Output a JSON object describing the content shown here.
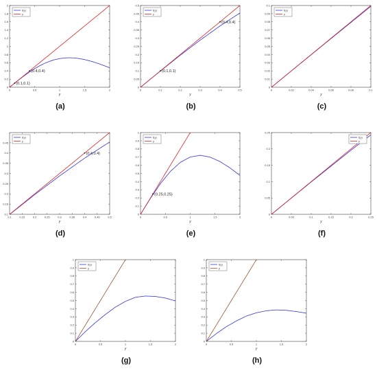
{
  "colors": {
    "f_curve": "#3333dd",
    "y_line": "#dd2222",
    "g_line": "#a0522d",
    "axes": "#444444"
  },
  "chart_data": [
    {
      "panel": "(a)",
      "type": "line",
      "xlabel": "y",
      "ylabel": "",
      "xlim": [
        0,
        2
      ],
      "ylim": [
        0,
        2
      ],
      "xticks": [
        "0",
        "0.5",
        "1",
        "1.5",
        "2"
      ],
      "yticks": [
        "0",
        "0.2",
        "0.4",
        "0.6",
        "0.8",
        "1",
        "1.2",
        "1.4",
        "1.6",
        "1.8",
        "2"
      ],
      "legend": {
        "position": "top-left",
        "entries": [
          "f(y)",
          "y"
        ]
      },
      "series": [
        {
          "name": "f(y)",
          "color": "f_curve",
          "fn": "f1",
          "x": [
            0,
            0.1,
            0.2,
            0.3,
            0.4,
            0.5,
            0.6,
            0.7,
            0.8,
            0.9,
            1.0,
            1.1,
            1.2,
            1.3,
            1.4,
            1.5,
            1.6,
            1.7,
            1.8,
            1.9,
            2.0
          ],
          "values": [
            0,
            0.099,
            0.196,
            0.288,
            0.375,
            0.454,
            0.524,
            0.585,
            0.635,
            0.674,
            0.701,
            0.717,
            0.722,
            0.716,
            0.7,
            0.676,
            0.645,
            0.609,
            0.568,
            0.523,
            0.476
          ]
        },
        {
          "name": "y",
          "color": "y_line",
          "fn": "identity",
          "x": [
            0,
            2
          ],
          "values": [
            0,
            2
          ]
        }
      ],
      "annotations": [
        {
          "text": "(0.1,0.1)",
          "x": 0.1,
          "y": 0.1
        },
        {
          "text": "(0.4,0.4)",
          "x": 0.4,
          "y": 0.4
        }
      ]
    },
    {
      "panel": "(b)",
      "type": "line",
      "xlabel": "y",
      "ylabel": "",
      "xlim": [
        0,
        0.5
      ],
      "ylim": [
        0,
        0.5
      ],
      "xticks": [
        "0",
        "0.1",
        "0.2",
        "0.3",
        "0.4",
        "0.5"
      ],
      "yticks": [
        "0",
        "0.05",
        "0.1",
        "0.15",
        "0.2",
        "0.25",
        "0.3",
        "0.35",
        "0.4",
        "0.45",
        "0.5"
      ],
      "legend": {
        "position": "top-left",
        "entries": [
          "f(y)",
          "y"
        ]
      },
      "series": [
        {
          "name": "f(y)",
          "color": "f_curve",
          "fn": "f1",
          "x": [
            0,
            0.1,
            0.2,
            0.3,
            0.4,
            0.5
          ],
          "values": [
            0,
            0.099,
            0.196,
            0.288,
            0.375,
            0.454
          ]
        },
        {
          "name": "y",
          "color": "y_line",
          "fn": "identity",
          "x": [
            0,
            0.5
          ],
          "values": [
            0,
            0.5
          ]
        }
      ],
      "annotations": [
        {
          "text": "(0.1,0.1)",
          "x": 0.1,
          "y": 0.1
        },
        {
          "text": "(0.4,0.4)",
          "x": 0.4,
          "y": 0.4
        }
      ]
    },
    {
      "panel": "(c)",
      "type": "line",
      "xlabel": "y",
      "ylabel": "",
      "xlim": [
        0,
        0.1
      ],
      "ylim": [
        0,
        0.1
      ],
      "xticks": [
        "0",
        "0.02",
        "0.04",
        "0.06",
        "0.08",
        "0.1"
      ],
      "yticks": [
        "0",
        "0.01",
        "0.02",
        "0.03",
        "0.04",
        "0.05",
        "0.06",
        "0.07",
        "0.08",
        "0.09",
        "0.1"
      ],
      "legend": {
        "position": "top-left",
        "entries": [
          "f(y)",
          "y"
        ]
      },
      "series": [
        {
          "name": "f(y)",
          "color": "f_curve",
          "fn": "f1",
          "x": [
            0,
            0.05,
            0.1
          ],
          "values": [
            0,
            0.0497,
            0.099
          ]
        },
        {
          "name": "y",
          "color": "y_line",
          "fn": "identity",
          "x": [
            0,
            0.1
          ],
          "values": [
            0,
            0.1
          ]
        }
      ],
      "annotations": []
    },
    {
      "panel": "(d)",
      "type": "line",
      "xlabel": "y",
      "ylabel": "",
      "xlim": [
        0.1,
        0.5
      ],
      "ylim": [
        0.1,
        0.5
      ],
      "xticks": [
        "0.1",
        "0.15",
        "0.2",
        "0.25",
        "0.3",
        "0.35",
        "0.4",
        "0.45",
        "0.5"
      ],
      "yticks": [
        "0.1",
        "0.15",
        "0.2",
        "0.25",
        "0.3",
        "0.35",
        "0.4",
        "0.45"
      ],
      "legend": {
        "position": "top-left",
        "entries": [
          "f(y)",
          "y"
        ]
      },
      "series": [
        {
          "name": "f(y)",
          "color": "f_curve",
          "fn": "f1",
          "x": [
            0.1,
            0.2,
            0.3,
            0.4,
            0.5
          ],
          "values": [
            0.099,
            0.196,
            0.288,
            0.375,
            0.454
          ]
        },
        {
          "name": "y",
          "color": "y_line",
          "fn": "identity",
          "x": [
            0.1,
            0.5
          ],
          "values": [
            0.1,
            0.5
          ]
        }
      ],
      "annotations": [
        {
          "text": "(0.4,0.4)",
          "x": 0.4,
          "y": 0.4
        }
      ]
    },
    {
      "panel": "(e)",
      "type": "line",
      "xlabel": "y",
      "ylabel": "",
      "xlim": [
        0,
        2
      ],
      "ylim": [
        0,
        1
      ],
      "xticks": [
        "0",
        "0.5",
        "1",
        "1.5",
        "2"
      ],
      "yticks": [
        "0",
        "0.1",
        "0.2",
        "0.3",
        "0.4",
        "0.5",
        "0.6",
        "0.7",
        "0.8",
        "0.9",
        "1"
      ],
      "legend": {
        "position": "top-left",
        "entries": [
          "f(y)",
          "y"
        ]
      },
      "series": [
        {
          "name": "f(y)",
          "color": "f_curve",
          "fn": "f1",
          "x": [
            0,
            0.2,
            0.4,
            0.6,
            0.8,
            1.0,
            1.2,
            1.4,
            1.6,
            1.8,
            2.0
          ],
          "values": [
            0,
            0.196,
            0.375,
            0.524,
            0.635,
            0.701,
            0.722,
            0.7,
            0.645,
            0.568,
            0.476
          ]
        },
        {
          "name": "y",
          "color": "y_line",
          "fn": "identity",
          "x": [
            0,
            1
          ],
          "values": [
            0,
            1
          ]
        }
      ],
      "annotations": [
        {
          "text": "(0.25,0.25)",
          "x": 0.25,
          "y": 0.25
        }
      ]
    },
    {
      "panel": "(f)",
      "type": "line",
      "xlabel": "y",
      "ylabel": "",
      "xlim": [
        0,
        0.25
      ],
      "ylim": [
        0,
        0.25
      ],
      "xticks": [
        "0",
        "0.05",
        "0.1",
        "0.15",
        "0.2",
        "0.25"
      ],
      "yticks": [
        "0",
        "0.05",
        "0.1",
        "0.15",
        "0.2",
        "0.25"
      ],
      "legend": {
        "position": "top-right",
        "entries": [
          "f(y)",
          "y"
        ]
      },
      "series": [
        {
          "name": "f(y)",
          "color": "f_curve",
          "fn": "f1",
          "x": [
            0,
            0.1,
            0.2,
            0.25
          ],
          "values": [
            0,
            0.099,
            0.196,
            0.243
          ]
        },
        {
          "name": "y",
          "color": "y_line",
          "fn": "identity",
          "x": [
            0,
            0.25
          ],
          "values": [
            0,
            0.25
          ]
        }
      ],
      "annotations": []
    },
    {
      "panel": "(g)",
      "type": "line",
      "xlabel": "y",
      "ylabel": "",
      "xlim": [
        0,
        2
      ],
      "ylim": [
        0,
        1
      ],
      "xticks": [
        "0",
        "0.5",
        "1",
        "1.5",
        "2"
      ],
      "yticks": [
        "0",
        "0.1",
        "0.2",
        "0.3",
        "0.4",
        "0.5",
        "0.6",
        "0.7",
        "0.8",
        "0.9",
        "1"
      ],
      "legend": {
        "position": "top-left",
        "entries": [
          "f(y)",
          "y"
        ]
      },
      "series": [
        {
          "name": "f(y)",
          "color": "f_curve",
          "fn": "f2",
          "x": [
            0,
            0.2,
            0.4,
            0.6,
            0.8,
            1.0,
            1.2,
            1.4,
            1.6,
            1.8,
            2.0
          ],
          "values": [
            0,
            0.12,
            0.23,
            0.33,
            0.42,
            0.49,
            0.54,
            0.555,
            0.55,
            0.53,
            0.495
          ]
        },
        {
          "name": "y",
          "color": "g_line",
          "fn": "identity",
          "x": [
            0,
            1
          ],
          "values": [
            0,
            1
          ]
        }
      ],
      "annotations": []
    },
    {
      "panel": "(h)",
      "type": "line",
      "xlabel": "y",
      "ylabel": "",
      "xlim": [
        0,
        2
      ],
      "ylim": [
        0,
        1
      ],
      "xticks": [
        "0",
        "0.5",
        "1",
        "1.5",
        "2"
      ],
      "yticks": [
        "0",
        "0.1",
        "0.2",
        "0.3",
        "0.4",
        "0.5",
        "0.6",
        "0.7",
        "0.8",
        "0.9",
        "1"
      ],
      "legend": {
        "position": "top-left",
        "entries": [
          "f(y)",
          "y"
        ]
      },
      "series": [
        {
          "name": "f(y)",
          "color": "f_curve",
          "fn": "f3",
          "x": [
            0,
            0.2,
            0.4,
            0.6,
            0.8,
            1.0,
            1.2,
            1.4,
            1.6,
            1.8,
            2.0
          ],
          "values": [
            0,
            0.095,
            0.18,
            0.25,
            0.31,
            0.35,
            0.375,
            0.385,
            0.38,
            0.365,
            0.345
          ]
        },
        {
          "name": "y",
          "color": "g_line",
          "fn": "identity",
          "x": [
            0,
            1
          ],
          "values": [
            0,
            1
          ]
        }
      ],
      "annotations": []
    }
  ]
}
